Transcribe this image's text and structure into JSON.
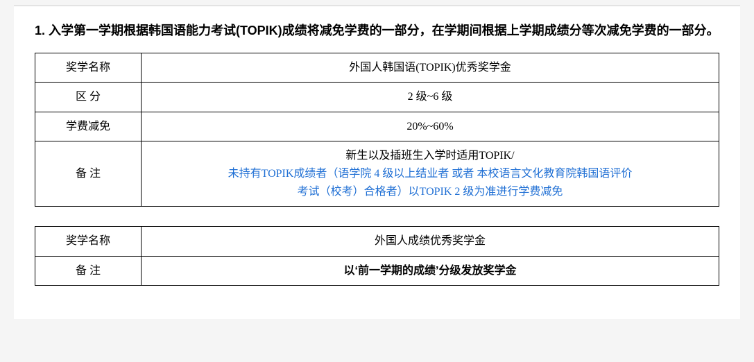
{
  "heading": "1. 入学第一学期根据韩国语能力考试(TOPIK)成绩将减免学费的一部分，在学期间根据上学期成绩分等次减免学费的一部分。",
  "table1": {
    "rows": [
      {
        "label": "奖学名称",
        "value": "外国人韩国语(TOPIK)优秀奖学金"
      },
      {
        "label": "区 分",
        "value": "2 级~6 级"
      },
      {
        "label": "学费减免",
        "value": "20%~60%"
      }
    ],
    "note_label": "备 注",
    "note_line1": "新生以及插班生入学时适用TOPIK/",
    "note_line2a": "未持有TOPIK成绩者（语学院 4 级以上结业者 或者 本校语言文化教育院韩国语评价",
    "note_line2b": "考试（校考）合格者）以TOPIK 2 级为准进行学费减免"
  },
  "table2": {
    "name_label": "奖学名称",
    "name_value": "外国人成绩优秀奖学金",
    "note_label": "备 注",
    "note_value": "以‘前一学期的成绩’分级发放奖学金"
  }
}
